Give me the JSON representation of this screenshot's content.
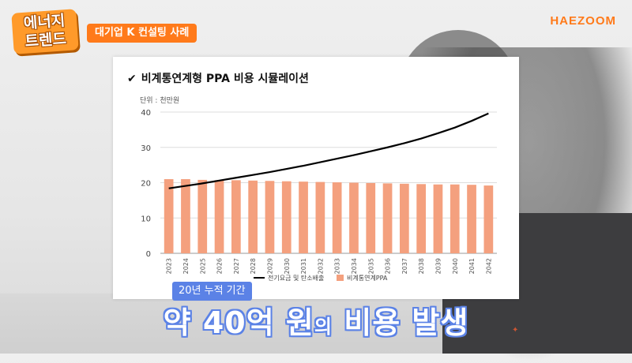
{
  "badge": {
    "line1": "에너지",
    "line2": "트렌드"
  },
  "tag_label": "대기업 K 컨설팅 사례",
  "brand": "HAEZOOM",
  "card": {
    "title": "비계통연계형 PPA 비용 시뮬레이션",
    "check_icon": "✔",
    "unit": "단위 : 천만원"
  },
  "subtitle": {
    "small": "20년 누적 기간",
    "big_part1": "약 40억 원",
    "big_part2": "의",
    "big_part3": " 비용 발생"
  },
  "colors": {
    "bar": "#f4a07e",
    "line": "#000000",
    "accent": "#ff7a1a",
    "subtitle": "#5b82e6"
  },
  "chart_data": {
    "type": "bar",
    "title": "비계통연계형 PPA 비용 시뮬레이션",
    "ylabel": "단위 : 천만원",
    "ylim": [
      0,
      40
    ],
    "yticks": [
      "0",
      "10",
      "20",
      "30",
      "40"
    ],
    "grid": true,
    "legend_position": "bottom",
    "categories": [
      "2023",
      "2024",
      "2025",
      "2026",
      "2027",
      "2028",
      "2029",
      "2030",
      "2031",
      "2032",
      "2033",
      "2034",
      "2035",
      "2036",
      "2037",
      "2038",
      "2039",
      "2040",
      "2041",
      "2042"
    ],
    "series": [
      {
        "name": "비계통연계PPA",
        "type": "bar",
        "color": "#f4a07e",
        "values": [
          21.0,
          21.0,
          20.8,
          20.7,
          20.7,
          20.6,
          20.5,
          20.4,
          20.3,
          20.2,
          20.1,
          20.0,
          19.9,
          19.8,
          19.7,
          19.6,
          19.5,
          19.5,
          19.4,
          19.2
        ]
      },
      {
        "name": "전기요금 및 탄소배출",
        "type": "line",
        "color": "#000000",
        "values": [
          18.4,
          19.1,
          19.8,
          20.6,
          21.4,
          22.2,
          23.0,
          23.9,
          24.8,
          25.8,
          26.8,
          27.8,
          28.9,
          30.0,
          31.2,
          32.5,
          34.0,
          35.6,
          37.5,
          39.6
        ]
      }
    ]
  }
}
